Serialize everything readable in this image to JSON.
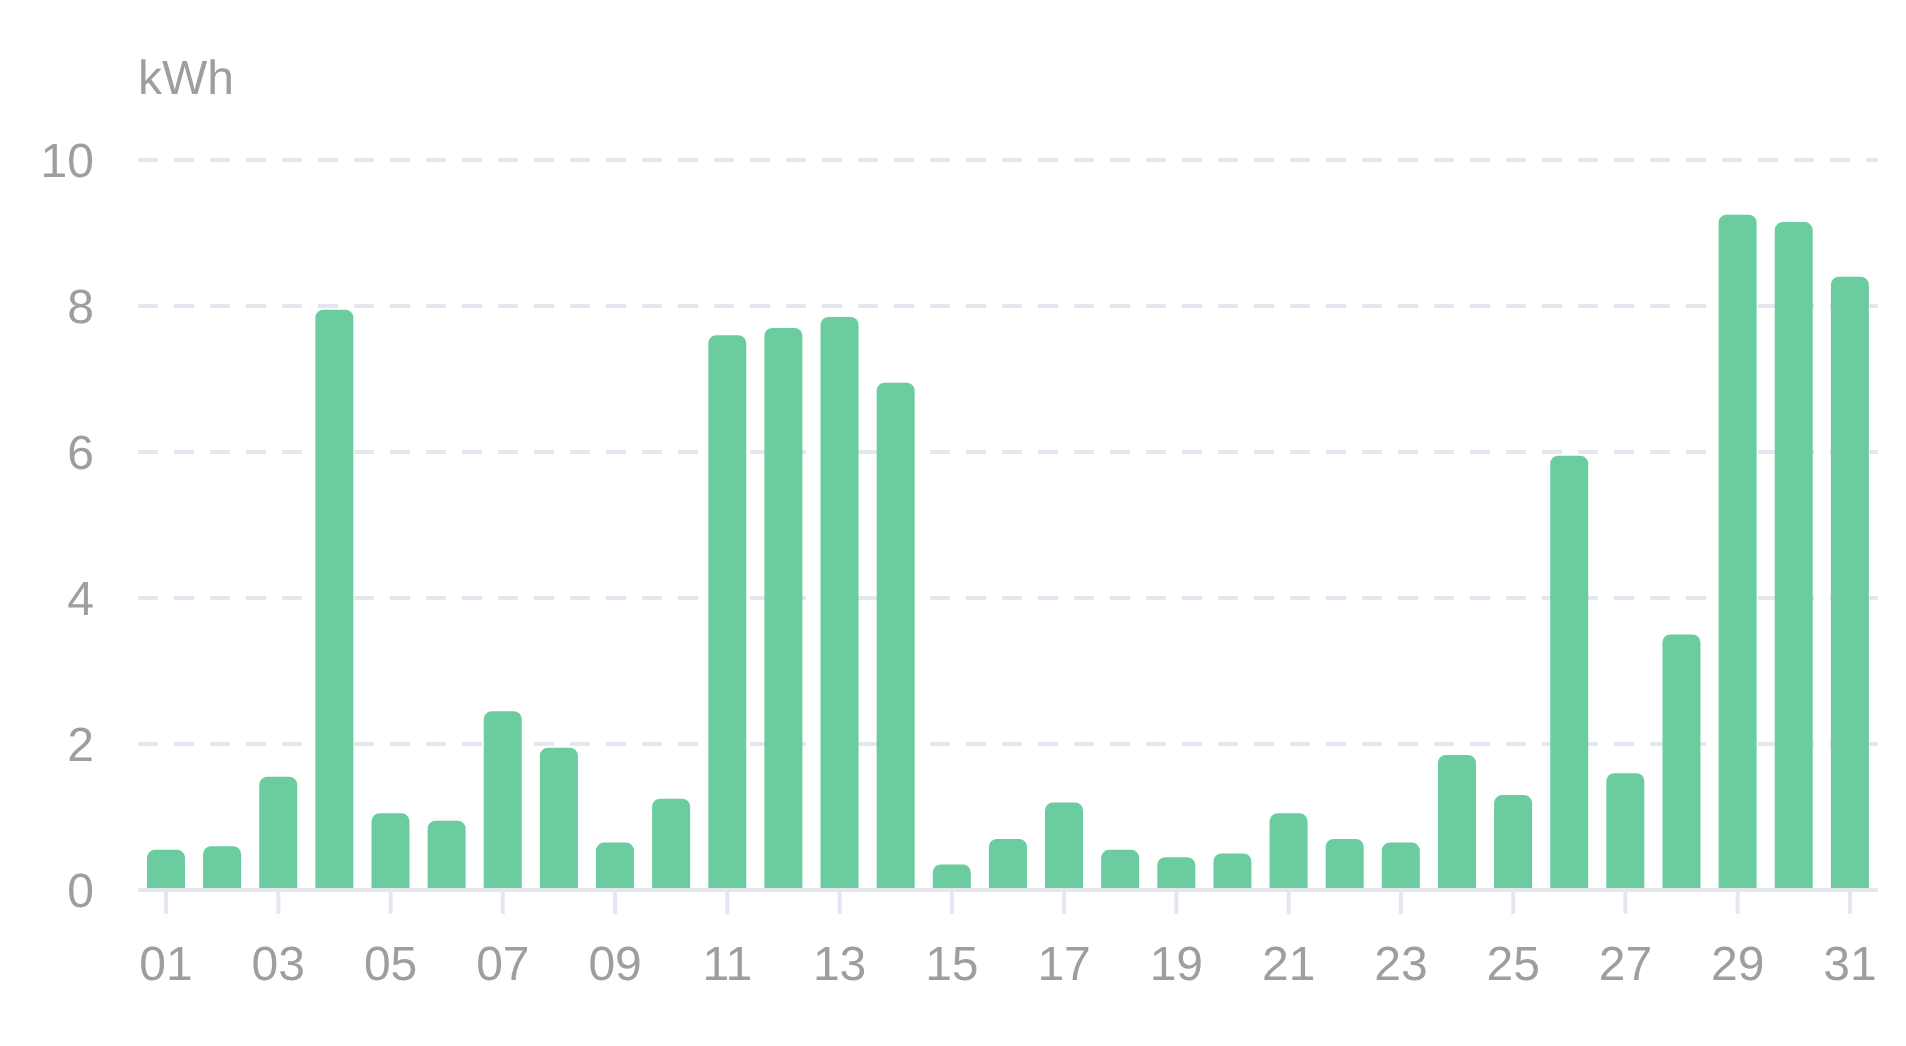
{
  "chart_data": {
    "type": "bar",
    "ylabel": "kWh",
    "categories": [
      "01",
      null,
      "03",
      null,
      "05",
      null,
      "07",
      null,
      "09",
      null,
      "11",
      null,
      "13",
      null,
      "15",
      null,
      "17",
      null,
      "19",
      null,
      "21",
      null,
      "23",
      null,
      "25",
      null,
      "27",
      null,
      "29",
      null,
      "31"
    ],
    "values": [
      0.55,
      0.6,
      1.55,
      7.95,
      1.05,
      0.95,
      2.45,
      1.95,
      0.65,
      1.25,
      7.6,
      7.7,
      7.85,
      6.95,
      0.35,
      0.7,
      1.2,
      0.55,
      0.45,
      0.5,
      1.05,
      0.7,
      0.65,
      1.85,
      1.3,
      5.95,
      1.6,
      3.5,
      9.25,
      9.15,
      8.4
    ],
    "color": "#6acc9f",
    "ylim": [
      0,
      10
    ],
    "yticks": [
      0,
      2,
      4,
      6,
      8,
      10
    ],
    "grid": "y"
  }
}
